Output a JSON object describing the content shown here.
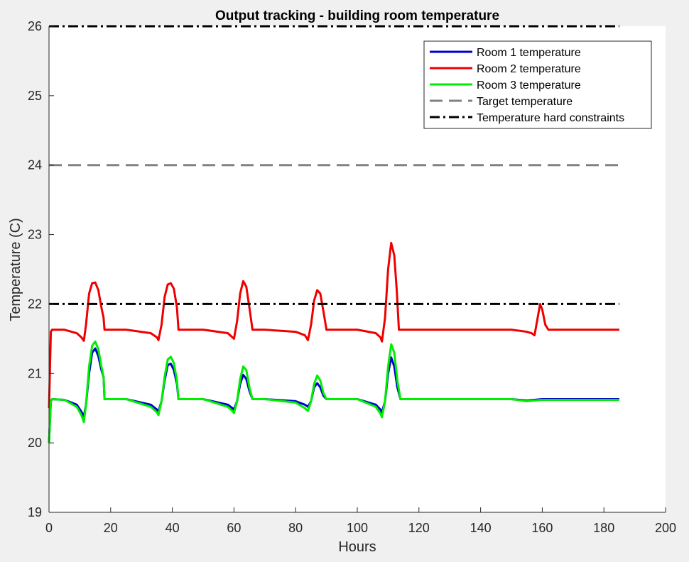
{
  "chart_data": {
    "type": "line",
    "title": "Output tracking - building room temperature",
    "xlabel": "Hours",
    "ylabel": "Temperature (C)",
    "xlim": [
      0,
      200
    ],
    "ylim": [
      19,
      26
    ],
    "xticks": [
      0,
      20,
      40,
      60,
      80,
      100,
      120,
      140,
      160,
      180,
      200
    ],
    "yticks": [
      19,
      20,
      21,
      22,
      23,
      24,
      25,
      26
    ],
    "grid": false,
    "legend_position": "top-right",
    "series": [
      {
        "name": "Room 1 temperature",
        "color": "#0000cc",
        "style": "solid",
        "x": [
          0,
          0.6,
          1,
          5,
          9,
          10.5,
          11.3,
          12,
          13,
          14,
          15,
          16,
          17,
          17.7,
          18,
          25,
          33,
          35,
          35.5,
          36.5,
          37.5,
          38.5,
          39.5,
          40.5,
          41.5,
          42,
          50,
          58,
          59.5,
          60,
          61,
          62,
          63,
          64,
          65,
          66,
          70,
          80,
          83,
          84,
          85,
          86,
          87,
          88,
          89,
          90,
          100,
          106,
          107.5,
          108,
          109,
          110,
          111,
          112,
          113,
          114,
          130,
          150,
          155,
          160,
          185
        ],
        "y": [
          20,
          20.6,
          20.63,
          20.62,
          20.55,
          20.45,
          20.38,
          20.55,
          21.0,
          21.3,
          21.36,
          21.25,
          21.05,
          20.95,
          20.63,
          20.63,
          20.55,
          20.48,
          20.45,
          20.6,
          20.9,
          21.12,
          21.14,
          21.05,
          20.85,
          20.63,
          20.63,
          20.55,
          20.5,
          20.48,
          20.6,
          20.85,
          20.98,
          20.92,
          20.75,
          20.63,
          20.63,
          20.6,
          20.55,
          20.52,
          20.6,
          20.8,
          20.86,
          20.8,
          20.68,
          20.63,
          20.63,
          20.55,
          20.48,
          20.44,
          20.6,
          21.0,
          21.23,
          21.1,
          20.8,
          20.63,
          20.63,
          20.63,
          20.61,
          20.63,
          20.63
        ]
      },
      {
        "name": "Room 2 temperature",
        "color": "#ee0000",
        "style": "solid",
        "x": [
          0,
          0.6,
          1,
          5,
          9,
          10.5,
          11.3,
          12,
          13,
          14,
          15,
          16,
          17,
          17.7,
          18,
          25,
          33,
          35,
          35.5,
          36.5,
          37.5,
          38.5,
          39.5,
          40.5,
          41.5,
          42,
          50,
          58,
          59.5,
          60,
          61,
          62,
          63,
          64,
          65,
          66,
          70,
          80,
          83,
          84,
          85,
          86,
          87,
          88,
          89,
          90,
          100,
          106,
          107.5,
          108,
          109,
          110,
          111,
          112,
          112.8,
          113.5,
          130,
          150,
          155,
          156.5,
          157.5,
          158.5,
          159.3,
          160,
          161,
          162,
          185
        ],
        "y": [
          20.5,
          21.6,
          21.63,
          21.63,
          21.58,
          21.52,
          21.47,
          21.7,
          22.15,
          22.3,
          22.31,
          22.2,
          21.95,
          21.8,
          21.63,
          21.63,
          21.58,
          21.52,
          21.48,
          21.7,
          22.1,
          22.28,
          22.3,
          22.22,
          21.95,
          21.63,
          21.63,
          21.58,
          21.52,
          21.5,
          21.75,
          22.15,
          22.33,
          22.25,
          21.95,
          21.63,
          21.63,
          21.6,
          21.55,
          21.48,
          21.7,
          22.05,
          22.2,
          22.15,
          21.9,
          21.63,
          21.63,
          21.58,
          21.52,
          21.46,
          21.8,
          22.5,
          22.88,
          22.7,
          22.2,
          21.63,
          21.63,
          21.63,
          21.6,
          21.58,
          21.55,
          21.8,
          22.0,
          21.92,
          21.7,
          21.63,
          21.63
        ]
      },
      {
        "name": "Room 3 temperature",
        "color": "#00ee00",
        "style": "solid",
        "x": [
          0,
          0.6,
          1,
          5,
          9,
          10.5,
          11.3,
          12,
          13,
          14,
          15,
          16,
          17,
          17.7,
          18,
          25,
          33,
          35,
          35.5,
          36.5,
          37.5,
          38.5,
          39.5,
          40.5,
          41.5,
          42,
          50,
          58,
          59.5,
          60,
          61,
          62,
          63,
          64,
          65,
          66,
          70,
          80,
          83,
          84,
          85,
          86,
          87,
          88,
          89,
          90,
          100,
          106,
          107.5,
          108,
          109,
          110,
          111,
          112,
          113,
          114,
          130,
          150,
          155,
          160,
          185
        ],
        "y": [
          20,
          20.6,
          20.63,
          20.62,
          20.52,
          20.4,
          20.3,
          20.55,
          21.1,
          21.4,
          21.46,
          21.35,
          21.1,
          20.95,
          20.63,
          20.63,
          20.52,
          20.44,
          20.4,
          20.6,
          20.95,
          21.2,
          21.24,
          21.15,
          20.9,
          20.63,
          20.63,
          20.52,
          20.46,
          20.43,
          20.6,
          20.92,
          21.1,
          21.05,
          20.8,
          20.63,
          20.63,
          20.58,
          20.5,
          20.46,
          20.6,
          20.85,
          20.97,
          20.9,
          20.72,
          20.63,
          20.63,
          20.52,
          20.42,
          20.37,
          20.6,
          21.1,
          21.42,
          21.3,
          20.9,
          20.63,
          20.63,
          20.63,
          20.6,
          20.62,
          20.62
        ]
      },
      {
        "name": "Target temperature",
        "color": "#808080",
        "style": "dashed",
        "x": [
          0,
          185
        ],
        "y": [
          24,
          24
        ]
      },
      {
        "name": "Temperature hard constraints",
        "color": "#000000",
        "style": "dashdot",
        "x": [
          0,
          185
        ],
        "y": [
          26,
          26
        ]
      },
      {
        "color": "#000000",
        "style": "dashdot",
        "x": [
          0,
          185
        ],
        "y": [
          22,
          22
        ]
      }
    ]
  }
}
